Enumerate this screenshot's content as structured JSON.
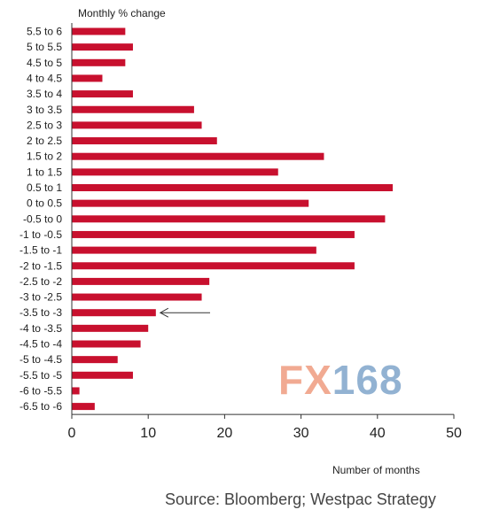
{
  "chart_data": {
    "type": "bar",
    "orientation": "horizontal",
    "title": "Monthly % change",
    "xlabel": "Number of months",
    "categories": [
      "5.5 to 6",
      "5 to 5.5",
      "4.5 to 5",
      "4 to 4.5",
      "3.5 to 4",
      "3 to 3.5",
      "2.5 to 3",
      "2 to 2.5",
      "1.5 to 2",
      "1 to 1.5",
      "0.5 to 1",
      "0 to 0.5",
      "-0.5 to 0",
      "-1 to -0.5",
      "-1.5 to -1",
      "-2 to -1.5",
      "-2.5 to -2",
      "-3 to -2.5",
      "-3.5 to -3",
      "-4 to -3.5",
      "-4.5 to -4",
      "-5 to -4.5",
      "-5.5 to -5",
      "-6 to -5.5",
      "-6.5 to -6"
    ],
    "values": [
      7,
      8,
      7,
      4,
      8,
      16,
      17,
      19,
      33,
      27,
      42,
      31,
      41,
      37,
      32,
      37,
      18,
      17,
      11,
      10,
      9,
      6,
      8,
      1,
      3
    ],
    "xlim": [
      0,
      50
    ],
    "xticks": [
      0,
      10,
      20,
      30,
      40,
      50
    ],
    "grid": false,
    "bar_color": "#c8102e",
    "annotation": {
      "type": "arrow",
      "points_to": "-3.5 to -3"
    }
  },
  "source": "Source: Bloomberg; Westpac Strategy",
  "watermark": {
    "text_fx": "FX",
    "text_num": "168",
    "color_fx": "#e8734a",
    "color_num": "#4a7fb5"
  }
}
